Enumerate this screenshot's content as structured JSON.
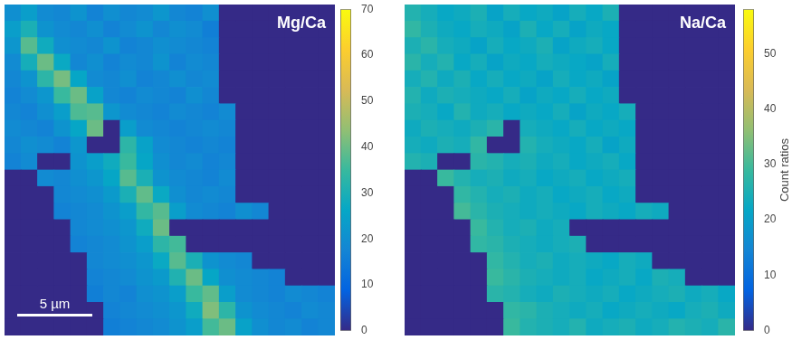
{
  "chart_data": [
    {
      "type": "heatmap",
      "title": "Mg/Ca",
      "tick_labels": false,
      "xlim": [
        0,
        22
      ],
      "ylim": [
        0,
        22
      ],
      "scale_bar": {
        "label": "5 µm",
        "length": 5
      },
      "colorbar": {
        "range": [
          0,
          70
        ],
        "ticks": [
          0,
          10,
          20,
          30,
          40,
          50,
          60,
          70
        ]
      },
      "cells": [
        [
          20,
          24,
          19,
          18,
          21,
          17,
          20,
          18,
          19,
          22,
          18,
          17,
          20,
          0,
          0,
          0,
          0,
          0,
          0,
          0
        ],
        [
          24,
          30,
          21,
          19,
          18,
          20,
          17,
          19,
          21,
          18,
          20,
          19,
          16,
          0,
          0,
          0,
          0,
          0,
          0,
          0
        ],
        [
          22,
          38,
          28,
          20,
          19,
          18,
          21,
          17,
          18,
          20,
          19,
          18,
          17,
          0,
          0,
          0,
          0,
          0,
          0,
          0
        ],
        [
          19,
          29,
          40,
          27,
          18,
          20,
          17,
          19,
          18,
          21,
          17,
          19,
          18,
          0,
          0,
          0,
          0,
          0,
          0,
          0
        ],
        [
          18,
          21,
          33,
          41,
          26,
          19,
          18,
          20,
          17,
          18,
          20,
          18,
          19,
          0,
          0,
          0,
          0,
          0,
          0,
          0
        ],
        [
          17,
          19,
          22,
          35,
          40,
          25,
          18,
          17,
          19,
          18,
          17,
          20,
          18,
          0,
          0,
          0,
          0,
          0,
          0,
          0
        ],
        [
          18,
          17,
          20,
          24,
          37,
          38,
          22,
          19,
          18,
          17,
          19,
          18,
          17,
          19,
          0,
          0,
          0,
          0,
          0,
          0
        ],
        [
          19,
          18,
          17,
          21,
          26,
          40,
          0,
          24,
          19,
          18,
          17,
          18,
          19,
          18,
          0,
          0,
          0,
          0,
          0,
          0
        ],
        [
          18,
          20,
          19,
          17,
          22,
          0,
          0,
          33,
          25,
          19,
          18,
          17,
          18,
          17,
          0,
          0,
          0,
          0,
          0,
          0
        ],
        [
          17,
          19,
          0,
          0,
          21,
          24,
          28,
          35,
          26,
          20,
          18,
          19,
          17,
          18,
          0,
          0,
          0,
          0,
          0,
          0
        ],
        [
          0,
          0,
          19,
          18,
          20,
          22,
          26,
          38,
          30,
          21,
          19,
          18,
          17,
          19,
          0,
          0,
          0,
          0,
          0,
          0
        ],
        [
          0,
          0,
          0,
          18,
          19,
          20,
          23,
          30,
          39,
          27,
          20,
          18,
          19,
          18,
          0,
          0,
          0,
          0,
          0,
          0
        ],
        [
          0,
          0,
          0,
          17,
          18,
          19,
          21,
          24,
          34,
          38,
          24,
          19,
          18,
          17,
          20,
          18,
          0,
          0,
          0,
          0
        ],
        [
          0,
          0,
          0,
          0,
          18,
          19,
          20,
          22,
          28,
          40,
          0,
          0,
          0,
          0,
          0,
          0,
          0,
          0,
          0,
          0
        ],
        [
          0,
          0,
          0,
          0,
          17,
          18,
          19,
          21,
          24,
          33,
          36,
          0,
          0,
          0,
          0,
          0,
          0,
          0,
          0,
          0
        ],
        [
          0,
          0,
          0,
          0,
          0,
          18,
          19,
          20,
          22,
          27,
          38,
          30,
          21,
          19,
          18,
          0,
          0,
          0,
          0,
          0
        ],
        [
          0,
          0,
          0,
          0,
          0,
          17,
          18,
          19,
          21,
          23,
          31,
          40,
          26,
          20,
          19,
          18,
          17,
          0,
          0,
          0
        ],
        [
          0,
          0,
          0,
          0,
          0,
          16,
          18,
          17,
          20,
          21,
          24,
          35,
          39,
          24,
          19,
          18,
          17,
          19,
          18,
          17
        ],
        [
          0,
          0,
          0,
          0,
          0,
          0,
          17,
          18,
          19,
          20,
          22,
          28,
          42,
          33,
          21,
          19,
          18,
          17,
          19,
          18
        ],
        [
          0,
          0,
          0,
          0,
          0,
          0,
          16,
          17,
          18,
          19,
          21,
          24,
          36,
          40,
          25,
          20,
          18,
          19,
          17,
          18
        ]
      ]
    },
    {
      "type": "heatmap",
      "title": "Na/Ca",
      "tick_labels": false,
      "xlim": [
        0,
        22
      ],
      "ylim": [
        0,
        22
      ],
      "colorbar": {
        "label": "Count ratios",
        "range": [
          0,
          58
        ],
        "ticks": [
          0,
          10,
          20,
          30,
          40,
          50
        ]
      },
      "cells": [
        [
          26,
          24,
          22,
          23,
          25,
          21,
          24,
          22,
          23,
          21,
          24,
          22,
          25,
          0,
          0,
          0,
          0,
          0,
          0,
          0
        ],
        [
          28,
          25,
          23,
          22,
          24,
          23,
          21,
          25,
          22,
          24,
          21,
          23,
          22,
          0,
          0,
          0,
          0,
          0,
          0,
          0
        ],
        [
          25,
          27,
          24,
          23,
          21,
          24,
          22,
          23,
          25,
          21,
          23,
          24,
          22,
          0,
          0,
          0,
          0,
          0,
          0,
          0
        ],
        [
          27,
          24,
          26,
          22,
          24,
          21,
          23,
          22,
          24,
          23,
          22,
          21,
          24,
          0,
          0,
          0,
          0,
          0,
          0,
          0
        ],
        [
          24,
          26,
          23,
          25,
          22,
          24,
          22,
          23,
          21,
          24,
          22,
          23,
          21,
          0,
          0,
          0,
          0,
          0,
          0,
          0
        ],
        [
          26,
          23,
          25,
          24,
          23,
          22,
          24,
          21,
          23,
          22,
          24,
          22,
          23,
          0,
          0,
          0,
          0,
          0,
          0,
          0
        ],
        [
          25,
          24,
          22,
          26,
          23,
          24,
          22,
          23,
          22,
          24,
          21,
          23,
          22,
          24,
          0,
          0,
          0,
          0,
          0,
          0
        ],
        [
          23,
          25,
          24,
          23,
          25,
          27,
          0,
          24,
          23,
          22,
          24,
          22,
          23,
          22,
          0,
          0,
          0,
          0,
          0,
          0
        ],
        [
          24,
          23,
          25,
          24,
          28,
          0,
          0,
          26,
          24,
          23,
          22,
          24,
          21,
          23,
          0,
          0,
          0,
          0,
          0,
          0
        ],
        [
          26,
          25,
          0,
          0,
          27,
          26,
          24,
          25,
          23,
          24,
          22,
          23,
          24,
          22,
          0,
          0,
          0,
          0,
          0,
          0
        ],
        [
          0,
          0,
          29,
          26,
          24,
          25,
          23,
          24,
          22,
          23,
          24,
          22,
          23,
          24,
          0,
          0,
          0,
          0,
          0,
          0
        ],
        [
          0,
          0,
          0,
          28,
          26,
          24,
          25,
          23,
          24,
          22,
          23,
          24,
          22,
          23,
          0,
          0,
          0,
          0,
          0,
          0
        ],
        [
          0,
          0,
          0,
          30,
          27,
          25,
          24,
          23,
          24,
          23,
          22,
          24,
          23,
          22,
          24,
          23,
          0,
          0,
          0,
          0
        ],
        [
          0,
          0,
          0,
          0,
          29,
          26,
          24,
          25,
          23,
          24,
          0,
          0,
          0,
          0,
          0,
          0,
          0,
          0,
          0,
          0
        ],
        [
          0,
          0,
          0,
          0,
          28,
          27,
          25,
          24,
          23,
          24,
          25,
          0,
          0,
          0,
          0,
          0,
          0,
          0,
          0,
          0
        ],
        [
          0,
          0,
          0,
          0,
          0,
          28,
          26,
          24,
          25,
          23,
          24,
          23,
          22,
          24,
          23,
          0,
          0,
          0,
          0,
          0
        ],
        [
          0,
          0,
          0,
          0,
          0,
          29,
          27,
          25,
          24,
          23,
          24,
          22,
          23,
          24,
          22,
          25,
          24,
          0,
          0,
          0
        ],
        [
          0,
          0,
          0,
          0,
          0,
          27,
          26,
          24,
          23,
          25,
          24,
          23,
          24,
          22,
          23,
          24,
          25,
          23,
          24,
          22
        ],
        [
          0,
          0,
          0,
          0,
          0,
          0,
          28,
          27,
          25,
          24,
          23,
          24,
          22,
          23,
          24,
          23,
          22,
          24,
          25,
          23
        ],
        [
          0,
          0,
          0,
          0,
          0,
          0,
          29,
          26,
          25,
          24,
          26,
          23,
          24,
          25,
          23,
          24,
          26,
          25,
          24,
          27
        ]
      ]
    }
  ]
}
